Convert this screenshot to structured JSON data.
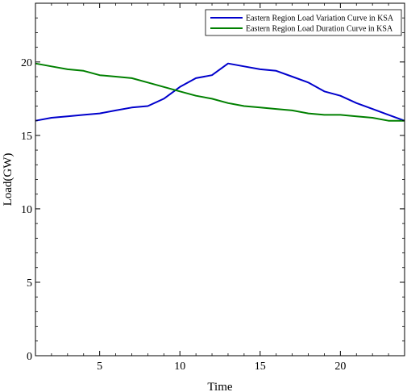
{
  "chart_data": {
    "type": "line",
    "title": "",
    "xlabel": "Time",
    "ylabel": "Load(GW)",
    "xlim": [
      1,
      24
    ],
    "ylim": [
      0,
      24
    ],
    "xticks": [
      5,
      10,
      15,
      20
    ],
    "yticks": [
      0,
      5,
      10,
      15,
      20
    ],
    "grid": false,
    "legend_position": "top-right",
    "x": [
      1,
      2,
      3,
      4,
      5,
      6,
      7,
      8,
      9,
      10,
      11,
      12,
      13,
      14,
      15,
      16,
      17,
      18,
      19,
      20,
      21,
      22,
      23,
      24
    ],
    "series": [
      {
        "name": "Eastern Region Load Variation Curve in KSA",
        "color": "#0000cc",
        "values": [
          16.0,
          16.2,
          16.3,
          16.4,
          16.5,
          16.7,
          16.9,
          17.0,
          17.5,
          18.3,
          18.9,
          19.1,
          19.9,
          19.7,
          19.5,
          19.4,
          19.0,
          18.6,
          18.0,
          17.7,
          17.2,
          16.8,
          16.4,
          16.0
        ]
      },
      {
        "name": "Eastern Region Load Duration Curve in KSA",
        "color": "#008000",
        "values": [
          19.9,
          19.7,
          19.5,
          19.4,
          19.1,
          19.0,
          18.9,
          18.6,
          18.3,
          18.0,
          17.7,
          17.5,
          17.2,
          17.0,
          16.9,
          16.8,
          16.7,
          16.5,
          16.4,
          16.4,
          16.3,
          16.2,
          16.0,
          16.0
        ]
      }
    ]
  }
}
